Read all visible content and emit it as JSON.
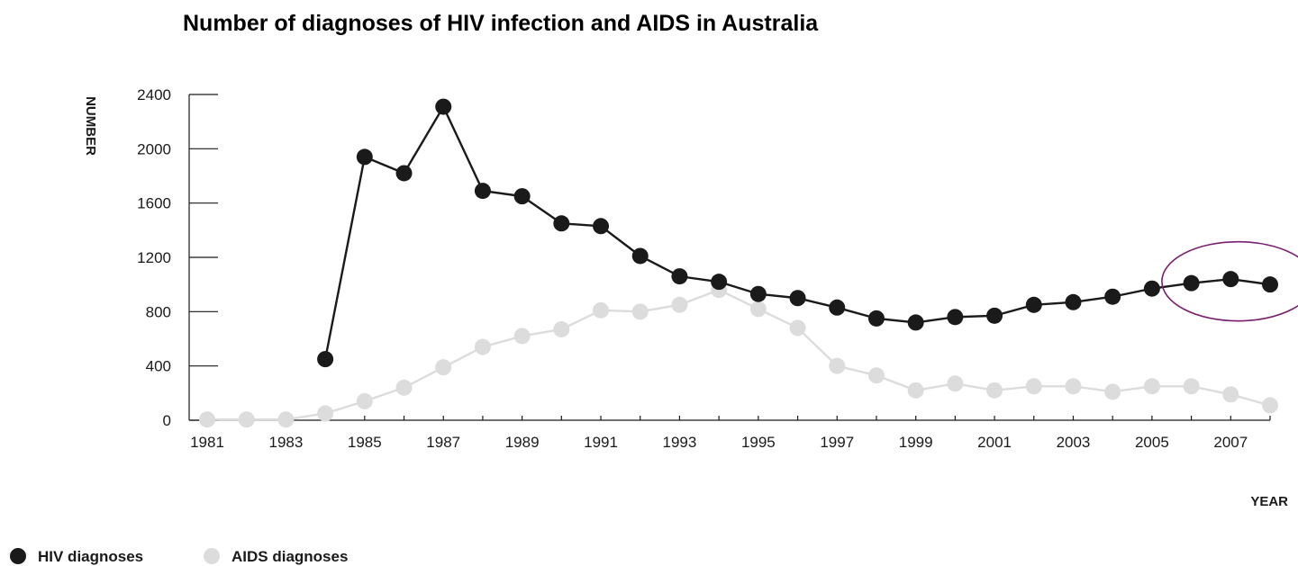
{
  "chart_data": {
    "type": "line",
    "title": "Number of diagnoses of HIV infection and AIDS in Australia",
    "xlabel": "YEAR",
    "ylabel": "NUMBER",
    "x": [
      1981,
      1982,
      1983,
      1984,
      1985,
      1986,
      1987,
      1988,
      1989,
      1990,
      1991,
      1992,
      1993,
      1994,
      1995,
      1996,
      1997,
      1998,
      1999,
      2000,
      2001,
      2002,
      2003,
      2004,
      2005,
      2006,
      2007,
      2008
    ],
    "x_tick_labels": [
      "1981",
      "1983",
      "1985",
      "1987",
      "1989",
      "1991",
      "1993",
      "1995",
      "1997",
      "1999",
      "2001",
      "2003",
      "2005",
      "2007"
    ],
    "y_tick_labels": [
      "0",
      "400",
      "800",
      "1200",
      "1600",
      "2000",
      "2400"
    ],
    "xlim": [
      1981,
      2008
    ],
    "ylim": [
      0,
      2400
    ],
    "grid": false,
    "legend_position": "bottom-left",
    "series": [
      {
        "name": "HIV diagnoses",
        "color": "#1a1a1a",
        "values": [
          null,
          null,
          null,
          450,
          1940,
          1820,
          2310,
          1690,
          1650,
          1450,
          1430,
          1210,
          1060,
          1020,
          930,
          900,
          830,
          750,
          720,
          760,
          770,
          850,
          870,
          910,
          970,
          1010,
          1040,
          1000
        ]
      },
      {
        "name": "AIDS diagnoses",
        "color": "#dcdcdc",
        "values": [
          5,
          5,
          5,
          50,
          140,
          240,
          390,
          540,
          620,
          670,
          810,
          800,
          850,
          960,
          820,
          680,
          400,
          330,
          220,
          270,
          220,
          250,
          250,
          210,
          250,
          250,
          190,
          110
        ]
      }
    ],
    "annotations": [
      {
        "type": "ellipse",
        "color": "#7a1f6e",
        "x_range": [
          2005,
          2008
        ],
        "y_center": 1010
      }
    ]
  }
}
